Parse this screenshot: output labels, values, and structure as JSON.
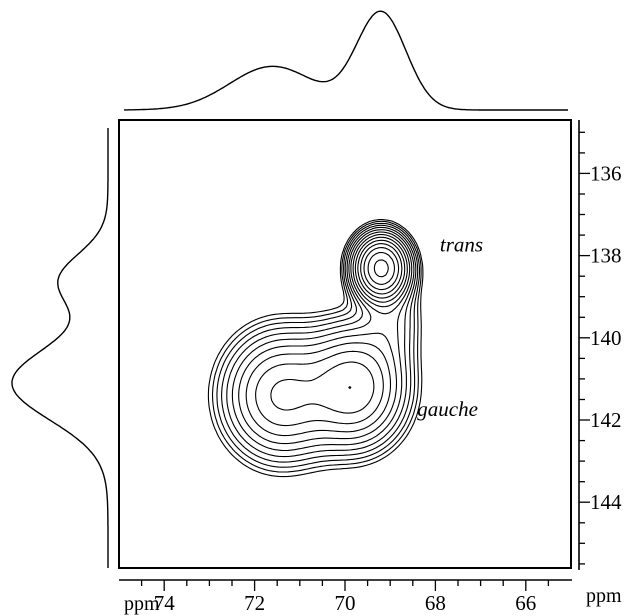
{
  "chart_data": {
    "type": "2d-nmr-contour",
    "x_axis": {
      "unit_label": "ppm",
      "range": [
        75.0,
        65.0
      ],
      "reversed": true,
      "tick_labels": [
        "74",
        "72",
        "70",
        "68",
        "66"
      ],
      "ticks": [
        74,
        72,
        70,
        68,
        66
      ],
      "minor_step": 0.5
    },
    "y_axis": {
      "unit_label": "ppm",
      "range": [
        134.7,
        145.6
      ],
      "reversed": true,
      "position": "right",
      "tick_labels": [
        "136",
        "138",
        "140",
        "142",
        "144"
      ],
      "ticks": [
        136,
        138,
        140,
        142,
        144
      ],
      "minor_step": 0.5
    },
    "contour_levels": 14,
    "peaks": [
      {
        "label": "trans",
        "x": 69.2,
        "y": 138.3,
        "sx": 0.32,
        "sy": 0.42,
        "amp": 6.0
      },
      {
        "label": "gauche",
        "x": 69.8,
        "y": 141.2,
        "sx": 0.62,
        "sy": 0.8,
        "amp": 2.1
      },
      {
        "label": "",
        "x": 71.4,
        "y": 141.4,
        "sx": 0.7,
        "sy": 0.85,
        "amp": 1.75
      },
      {
        "label": "",
        "x": 69.0,
        "y": 139.5,
        "sx": 0.4,
        "sy": 0.7,
        "amp": 0.45
      }
    ],
    "annotations": [
      {
        "text": "trans",
        "x": 67.9,
        "y": 137.9
      },
      {
        "text": "gauche",
        "x": 68.4,
        "y": 141.9
      }
    ],
    "projections": {
      "f2_top": {
        "peaks": [
          {
            "ppm": 69.2,
            "height": 1.0
          },
          {
            "ppm": 71.6,
            "height": 0.45
          }
        ]
      },
      "f1_left": {
        "peaks": [
          {
            "ppm": 141.1,
            "height": 1.0
          },
          {
            "ppm": 138.6,
            "height": 0.5
          }
        ]
      }
    },
    "grid": false,
    "legend": "none"
  }
}
